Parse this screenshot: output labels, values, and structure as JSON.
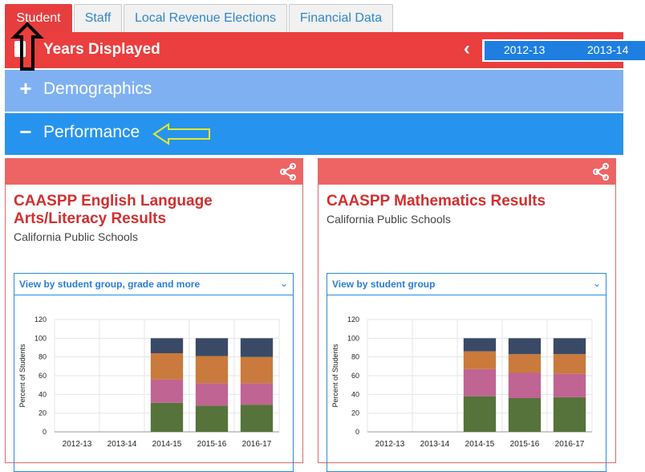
{
  "tabs": [
    {
      "label": "Student",
      "active": true
    },
    {
      "label": "Staff",
      "active": false
    },
    {
      "label": "Local Revenue Elections",
      "active": false
    },
    {
      "label": "Financial Data",
      "active": false
    }
  ],
  "years_bar": {
    "title": "Years Displayed",
    "years": [
      "2012-13",
      "2013-14"
    ]
  },
  "sections": {
    "demographics": {
      "symbol": "+",
      "label": "Demographics"
    },
    "performance": {
      "symbol": "−",
      "label": "Performance"
    }
  },
  "colors": {
    "red": "#eb3e3e",
    "light_blue": "#7fb1f2",
    "blue": "#2694ee",
    "card_header": "#ee6464",
    "series": [
      "#55733a",
      "#c06493",
      "#c97a3c",
      "#3a4a66"
    ]
  },
  "cards": [
    {
      "title": "CAASPP English Language Arts/Literacy Results",
      "subtitle": "California Public Schools",
      "select": "View by student group, grade and more",
      "chart_data": {
        "type": "bar",
        "stacked": true,
        "ylabel": "Percent of Students",
        "ylim": [
          0,
          120
        ],
        "yticks": [
          0,
          20,
          40,
          60,
          80,
          100,
          120
        ],
        "categories": [
          "2012-13",
          "2013-14",
          "2014-15",
          "2015-16",
          "2016-17"
        ],
        "series": [
          {
            "values": [
              0,
              0,
              31,
              28,
              29
            ]
          },
          {
            "values": [
              0,
              0,
              25,
              24,
              23
            ]
          },
          {
            "values": [
              0,
              0,
              28,
              29,
              28
            ]
          },
          {
            "values": [
              0,
              0,
              16,
              19,
              20
            ]
          }
        ]
      }
    },
    {
      "title": "CAASPP Mathematics Results",
      "subtitle": "California Public Schools",
      "select": "View by student group",
      "chart_data": {
        "type": "bar",
        "stacked": true,
        "ylabel": "Percent of Students",
        "ylim": [
          0,
          120
        ],
        "yticks": [
          0,
          20,
          40,
          60,
          80,
          100,
          120
        ],
        "categories": [
          "2012-13",
          "2013-14",
          "2014-15",
          "2015-16",
          "2016-17"
        ],
        "series": [
          {
            "values": [
              0,
              0,
              38,
              36,
              37
            ]
          },
          {
            "values": [
              0,
              0,
              29,
              27,
              25
            ]
          },
          {
            "values": [
              0,
              0,
              19,
              20,
              21
            ]
          },
          {
            "values": [
              0,
              0,
              14,
              17,
              17
            ]
          }
        ]
      }
    }
  ]
}
